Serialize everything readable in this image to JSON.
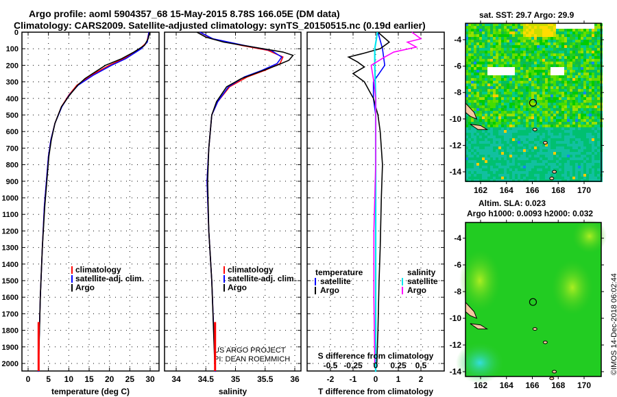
{
  "title_line1": "Argo profile: aoml 5904357_68 15-May-2015 8.78S 166.05E (DM data)",
  "title_line2": "Climatology: CARS2009. Satellite-adjusted climatology: synTS_20150515.nc (0.19d earlier)",
  "credit": "©IMOS 14-Dec-2018 06:02:44",
  "project_line1": "US ARGO PROJECT",
  "project_line2": "PI: DEAN ROEMMICH",
  "colors": {
    "climatology": "#ff0000",
    "satellite": "#0000ff",
    "argo": "#000000",
    "sal_satellite": "#00e5ee",
    "sal_argo": "#ff00ff"
  },
  "chart_data": [
    {
      "type": "line",
      "title": "",
      "xlabel": "temperature (deg C)",
      "ylabel": "",
      "xlim": [
        -2,
        32
      ],
      "ylim": [
        2050,
        0
      ],
      "xticks": [
        0,
        5,
        10,
        15,
        20,
        25,
        30
      ],
      "yticks": [
        0,
        100,
        200,
        300,
        400,
        500,
        600,
        700,
        800,
        900,
        1000,
        1100,
        1200,
        1300,
        1400,
        1500,
        1600,
        1700,
        1800,
        1900,
        2000
      ],
      "legend": [
        "climatology",
        "satellite-adj. clim.",
        "Argo"
      ],
      "legend_position": "bottom-right",
      "grid": true,
      "series": [
        {
          "name": "climatology",
          "depth": [
            0,
            60,
            100,
            160,
            200,
            260,
            320,
            380,
            450,
            550,
            650,
            750,
            900,
            1050,
            1300,
            1600,
            2050
          ],
          "values": [
            29.7,
            29.2,
            27.5,
            23.5,
            20,
            15.5,
            12,
            10,
            8.2,
            6.6,
            5.6,
            5,
            4.5,
            4,
            3.5,
            3,
            2.5
          ]
        },
        {
          "name": "satellite-adj. clim.",
          "depth": [
            0,
            60,
            100,
            160,
            200,
            260,
            320,
            380,
            450,
            550,
            650,
            750,
            900,
            1050,
            1300,
            1600,
            2050
          ],
          "values": [
            29.7,
            29.3,
            27.8,
            24,
            20.5,
            16,
            12.3,
            10.1,
            8.3,
            6.6,
            5.6,
            5,
            4.5,
            4,
            3.5,
            3,
            2.5
          ]
        },
        {
          "name": "Argo",
          "depth": [
            0,
            40,
            80,
            120,
            160,
            200,
            240,
            280,
            320,
            380,
            450,
            550,
            650,
            750,
            900,
            1050,
            1300,
            1600,
            2000
          ],
          "values": [
            29.9,
            29.5,
            28.6,
            26,
            23,
            19,
            16.5,
            14,
            12.2,
            10.2,
            8.2,
            6.6,
            5.7,
            5.1,
            4.6,
            4.1,
            3.5,
            3,
            2.6
          ]
        }
      ]
    },
    {
      "type": "line",
      "title": "",
      "xlabel": "salinity",
      "ylabel": "",
      "xlim": [
        33.6,
        36.1
      ],
      "ylim": [
        2050,
        0
      ],
      "xticks": [
        34,
        34.5,
        35,
        35.5,
        36
      ],
      "legend": [
        "climatology",
        "satellite-adj. clim.",
        "Argo"
      ],
      "legend_position": "bottom-right",
      "grid": true,
      "series": [
        {
          "name": "climatology",
          "depth": [
            0,
            40,
            80,
            110,
            150,
            190,
            230,
            270,
            330,
            420,
            500,
            700,
            900,
            1200,
            1500,
            2050
          ],
          "values": [
            34.4,
            34.6,
            35.1,
            35.55,
            35.8,
            35.75,
            35.5,
            35.2,
            34.9,
            34.7,
            34.6,
            34.55,
            34.52,
            34.55,
            34.6,
            34.66
          ]
        },
        {
          "name": "satellite-adj. clim.",
          "depth": [
            0,
            40,
            80,
            110,
            150,
            190,
            230,
            270,
            330,
            420,
            500,
            700,
            900,
            1200,
            1500,
            2050
          ],
          "values": [
            34.4,
            34.62,
            35.15,
            35.6,
            35.78,
            35.7,
            35.45,
            35.15,
            34.88,
            34.7,
            34.6,
            34.55,
            34.52,
            34.55,
            34.6,
            34.66
          ]
        },
        {
          "name": "Argo",
          "depth": [
            0,
            30,
            60,
            90,
            120,
            140,
            170,
            200,
            240,
            280,
            330,
            420,
            500,
            700,
            900,
            1200,
            1500,
            2000
          ],
          "values": [
            34.35,
            34.5,
            34.8,
            35.3,
            35.8,
            35.97,
            35.9,
            35.7,
            35.4,
            35.1,
            34.85,
            34.68,
            34.6,
            34.55,
            34.53,
            34.55,
            34.6,
            34.65
          ]
        }
      ]
    },
    {
      "type": "line",
      "title": "",
      "xlabel": "T difference from climatology",
      "xlabel2": "S difference from climatology",
      "ylabel": "",
      "xlim": [
        -2.5,
        2.5
      ],
      "xlim2": [
        -0.625,
        0.625
      ],
      "xticks": [
        -2,
        -1,
        0,
        1,
        2
      ],
      "xticks2": [
        "-0.5",
        "-0.25",
        "0",
        "0.25",
        "0.5"
      ],
      "ylim": [
        2050,
        0
      ],
      "legend_left_title": "temperature",
      "legend_right_title": "salinity",
      "legend": [
        "satellite",
        "Argo",
        "satellite",
        "Argo"
      ],
      "legend_position": "bottom",
      "grid": true,
      "series": [
        {
          "name": "temperature satellite",
          "depth": [
            0,
            100,
            200,
            300,
            400,
            500,
            700,
            1000,
            1500,
            2050
          ],
          "values": [
            0.1,
            0.3,
            0.4,
            -0.1,
            -0.1,
            0,
            0,
            0,
            0,
            0
          ]
        },
        {
          "name": "temperature Argo",
          "depth": [
            0,
            60,
            100,
            130,
            150,
            180,
            210,
            250,
            300,
            350,
            400,
            500,
            600,
            800,
            1000,
            1300,
            1500,
            1800,
            2000
          ],
          "values": [
            0.1,
            0.6,
            0.2,
            -0.6,
            -1.2,
            -0.8,
            -0.5,
            -1.0,
            -0.5,
            -0.3,
            -0.1,
            0.1,
            0.2,
            0.3,
            0.25,
            0.2,
            0.15,
            0.1,
            0.05
          ]
        },
        {
          "name": "salinity satellite",
          "depth": [
            0,
            100,
            200,
            400,
            700,
            1000,
            1500,
            2050
          ],
          "values": [
            0.02,
            -0.01,
            -0.01,
            0,
            0,
            0,
            0,
            0
          ]
        },
        {
          "name": "salinity Argo",
          "depth": [
            0,
            40,
            60,
            90,
            120,
            150,
            200,
            300,
            400,
            500,
            800,
            1200,
            1600,
            2000
          ],
          "values": [
            0.4,
            0.5,
            0.35,
            0.45,
            0.2,
            0.1,
            -0.05,
            -0.02,
            0,
            0,
            0,
            -0.02,
            -0.02,
            -0.01
          ]
        }
      ]
    },
    {
      "type": "heatmap",
      "title": "sat. SST: 29.7 Argo: 29.9",
      "xlim": [
        160.9,
        171.3
      ],
      "ylim": [
        -14.8,
        -2.9
      ],
      "xticks": [
        162,
        164,
        166,
        168,
        170
      ],
      "yticks": [
        -4,
        -6,
        -8,
        -10,
        -12,
        -14
      ],
      "marker": [
        166.05,
        -8.78
      ]
    },
    {
      "type": "heatmap",
      "title_line1": "Altim. SLA: 0.023",
      "title_line2": "Argo h1000: 0.0093 h2000: 0.032",
      "xlim": [
        160.9,
        171.3
      ],
      "ylim": [
        -14.8,
        -2.9
      ],
      "xticks": [
        162,
        164,
        166,
        168,
        170
      ],
      "yticks": [
        -4,
        -6,
        -8,
        -10,
        -12,
        -14
      ],
      "marker": [
        166.05,
        -8.78
      ]
    }
  ]
}
